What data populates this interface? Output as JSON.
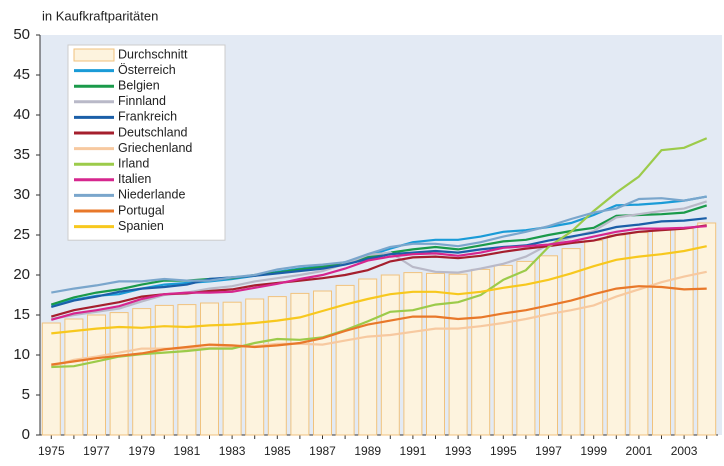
{
  "chart_data": {
    "type": "bar",
    "y_axis_label": "in Kaufkraftparitäten",
    "categories": [
      "1975",
      null,
      "1977",
      null,
      "1979",
      null,
      "1981",
      null,
      "1983",
      null,
      "1985",
      null,
      "1987",
      null,
      "1989",
      null,
      "1991",
      null,
      "1993",
      null,
      "1995",
      null,
      "1997",
      null,
      "1999",
      null,
      "2001",
      null,
      "2003",
      null
    ],
    "ylim": [
      0,
      50
    ],
    "yticks": [
      0,
      5,
      10,
      15,
      20,
      25,
      30,
      35,
      40,
      45,
      50
    ],
    "legend": "top-left",
    "series": [
      {
        "name": "Durchschnitt",
        "type": "bar",
        "color": "#fdf3de",
        "values": [
          14,
          14.5,
          15,
          15.3,
          15.8,
          16.2,
          16.3,
          16.5,
          16.6,
          17,
          17.3,
          17.7,
          18,
          18.7,
          19.5,
          20,
          20.3,
          20.2,
          20.1,
          20.7,
          21.2,
          21.7,
          22.4,
          23.3,
          24.3,
          25,
          25.3,
          25.8,
          25.8,
          26.5
        ]
      },
      {
        "name": "Österreich",
        "type": "line",
        "color": "#1a9bd7",
        "values": [
          16.2,
          16.9,
          17.4,
          17.6,
          18.3,
          18.8,
          19,
          19.2,
          19.5,
          19.9,
          20.4,
          20.8,
          21.1,
          21.6,
          22.4,
          23.3,
          24.1,
          24.4,
          24.4,
          24.8,
          25.4,
          25.6,
          26,
          26.5,
          27.5,
          28.7,
          28.8,
          29,
          29.3,
          29.8
        ]
      },
      {
        "name": "Belgien",
        "type": "line",
        "color": "#1a9a4a",
        "values": [
          16.3,
          17.2,
          17.8,
          18.2,
          18.8,
          19.3,
          19.3,
          19.5,
          19.6,
          20,
          20.3,
          20.7,
          21,
          21.5,
          22.2,
          22.8,
          23.2,
          23.5,
          23.2,
          23.7,
          24.2,
          24.4,
          25,
          25.5,
          25.9,
          27.4,
          27.5,
          27.6,
          27.8,
          28.7
        ]
      },
      {
        "name": "Finnland",
        "type": "line",
        "color": "#b9b9c8",
        "values": [
          14.5,
          15,
          15.4,
          15.8,
          16.7,
          17.5,
          17.8,
          18.3,
          18.6,
          19.2,
          19.6,
          20,
          20.5,
          21.4,
          22.5,
          22.8,
          21,
          20.4,
          20.3,
          20.8,
          21.4,
          22.3,
          23.8,
          24.7,
          25.5,
          27.2,
          27.6,
          28,
          28.3,
          29.2
        ]
      },
      {
        "name": "Frankreich",
        "type": "line",
        "color": "#1b5fa8",
        "values": [
          16,
          16.8,
          17.3,
          17.9,
          18.3,
          18.5,
          18.8,
          19.5,
          19.7,
          19.9,
          20.2,
          20.5,
          20.8,
          21.3,
          22,
          22.6,
          22.8,
          23,
          22.8,
          23.2,
          23.5,
          23.7,
          24.3,
          24.8,
          25.3,
          26,
          26.3,
          26.7,
          26.8,
          27.1
        ]
      },
      {
        "name": "Deutschland",
        "type": "line",
        "color": "#a51f2d",
        "values": [
          14.8,
          15.6,
          16.1,
          16.6,
          17.3,
          17.6,
          17.7,
          18,
          18.2,
          18.7,
          19,
          19.3,
          19.6,
          20,
          20.6,
          21.7,
          22.2,
          22.3,
          22.1,
          22.4,
          22.9,
          23.3,
          23.6,
          24,
          24.3,
          25,
          25.4,
          25.6,
          25.8,
          26.2
        ]
      },
      {
        "name": "Griechenland",
        "type": "line",
        "color": "#f7c9a0",
        "values": [
          8.6,
          9.4,
          9.8,
          10.3,
          10.8,
          10.8,
          10.8,
          10.9,
          11,
          11.1,
          11.4,
          11.4,
          11.3,
          11.8,
          12.3,
          12.5,
          12.9,
          13.3,
          13.3,
          13.6,
          14,
          14.5,
          15.1,
          15.6,
          16.2,
          17.3,
          18.2,
          19.1,
          19.8,
          20.4
        ]
      },
      {
        "name": "Irland",
        "type": "line",
        "color": "#9ccb4a",
        "values": [
          8.5,
          8.6,
          9.2,
          9.8,
          10.1,
          10.3,
          10.5,
          10.8,
          10.8,
          11.5,
          12,
          11.9,
          12.2,
          13.1,
          14.2,
          15.4,
          15.6,
          16.3,
          16.6,
          17.5,
          19.4,
          20.6,
          23.5,
          25.4,
          28,
          30.3,
          32.3,
          35.6,
          35.9,
          37.1
        ]
      },
      {
        "name": "Italien",
        "type": "line",
        "color": "#d6268e",
        "values": [
          14.4,
          15.2,
          15.6,
          16.1,
          17,
          17.6,
          17.8,
          17.8,
          17.9,
          18.4,
          18.9,
          19.5,
          20,
          20.8,
          21.8,
          22.3,
          22.6,
          22.7,
          22.4,
          22.8,
          23.4,
          23.6,
          23.8,
          24.2,
          24.8,
          25.4,
          25.8,
          25.8,
          25.9,
          26.1
        ]
      },
      {
        "name": "Niederlande",
        "type": "line",
        "color": "#7aa6cc",
        "values": [
          17.8,
          18.3,
          18.7,
          19.2,
          19.2,
          19.5,
          19.3,
          19.3,
          19.7,
          20,
          20.7,
          21.1,
          21.3,
          21.6,
          22.6,
          23.5,
          23.9,
          23.9,
          23.6,
          24.1,
          24.8,
          25.4,
          26.1,
          27,
          27.8,
          28.3,
          29.5,
          29.6,
          29.3,
          29.8
        ]
      },
      {
        "name": "Portugal",
        "type": "line",
        "color": "#e8782a",
        "values": [
          8.8,
          9.2,
          9.6,
          9.9,
          10.2,
          10.7,
          11,
          11.3,
          11.2,
          11,
          11.2,
          11.5,
          12.1,
          13,
          13.8,
          14.3,
          14.8,
          14.8,
          14.5,
          14.7,
          15.2,
          15.6,
          16.2,
          16.8,
          17.6,
          18.3,
          18.6,
          18.5,
          18.2,
          18.3
        ]
      },
      {
        "name": "Spanien",
        "type": "line",
        "color": "#f7c81e",
        "values": [
          12.7,
          13,
          13.3,
          13.5,
          13.4,
          13.6,
          13.5,
          13.7,
          13.8,
          14,
          14.3,
          14.7,
          15.5,
          16.3,
          17,
          17.6,
          17.9,
          17.9,
          17.6,
          17.9,
          18.4,
          18.8,
          19.4,
          20.2,
          21.1,
          21.9,
          22.3,
          22.6,
          23,
          23.6
        ]
      }
    ]
  }
}
